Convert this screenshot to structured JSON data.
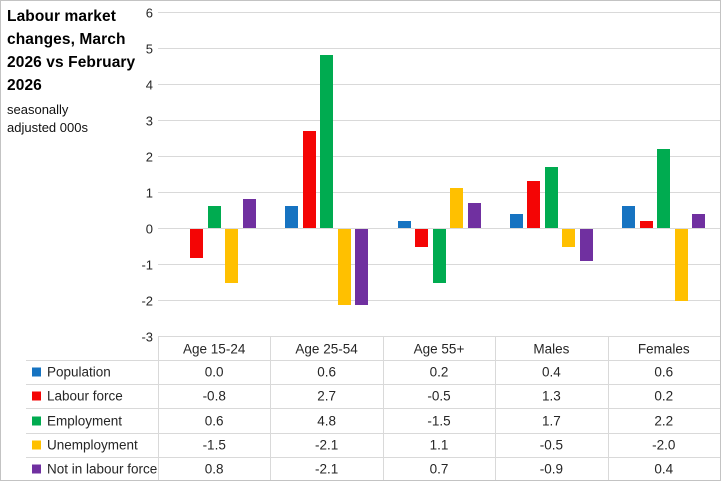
{
  "chart_data": {
    "type": "bar",
    "title": "Labour market changes, March 2026 vs February 2026",
    "subtitle": "seasonally adjusted 000s",
    "categories": [
      "Age 15-24",
      "Age 25-54",
      "Age 55+",
      "Males",
      "Females"
    ],
    "series": [
      {
        "name": "Population",
        "color": "#1673c1",
        "values": [
          0.0,
          0.6,
          0.2,
          0.4,
          0.6
        ]
      },
      {
        "name": "Labour force",
        "color": "#f40505",
        "values": [
          -0.8,
          2.7,
          -0.5,
          1.3,
          0.2
        ]
      },
      {
        "name": "Employment",
        "color": "#00ab50",
        "values": [
          0.6,
          4.8,
          -1.5,
          1.7,
          2.2
        ]
      },
      {
        "name": "Unemployment",
        "color": "#ffc000",
        "values": [
          -1.5,
          -2.1,
          1.1,
          -0.5,
          -2.0
        ]
      },
      {
        "name": "Not in labour force",
        "color": "#7030a0",
        "values": [
          0.8,
          -2.1,
          0.7,
          -0.9,
          0.4
        ]
      }
    ],
    "ylim": [
      -3,
      6
    ],
    "ytick_step": 1,
    "grid": true,
    "value_decimals": 1,
    "legend_position": "table-left",
    "data_table_shown": true
  }
}
